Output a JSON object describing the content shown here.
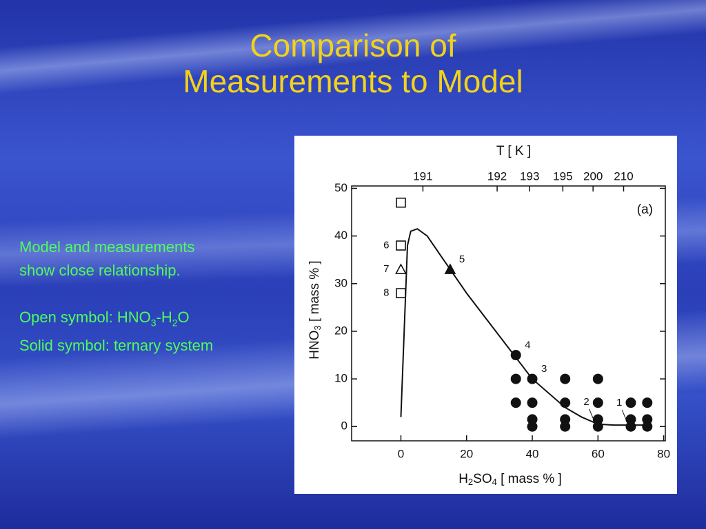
{
  "slide": {
    "title": [
      "Comparison of",
      "Measurements to Model"
    ],
    "text": [
      "Model and measurements",
      "show close relationship."
    ],
    "open_note": [
      "Open symbol: HNO",
      "3",
      "-H",
      "2",
      "O"
    ],
    "solid_note": "Solid symbol: ternary system"
  },
  "chart_data": {
    "type": "scatter",
    "x_label": [
      "H",
      "2",
      "SO",
      "4",
      " [ mass % ]"
    ],
    "y_label": [
      "HNO",
      "3",
      " [ mass % ]"
    ],
    "x2_label": "T [ K ]",
    "panel_label": "(a)",
    "xlim": [
      -15,
      80.5
    ],
    "ylim": [
      -3,
      50.5
    ],
    "xticks": [
      0,
      20,
      40,
      60,
      80
    ],
    "yticks": [
      0,
      10,
      20,
      30,
      40,
      50
    ],
    "x2ticks": [
      {
        "value": 6.7,
        "label": "191"
      },
      {
        "value": 29.3,
        "label": "192"
      },
      {
        "value": 39.2,
        "label": "193"
      },
      {
        "value": 49.3,
        "label": "195"
      },
      {
        "value": 58.5,
        "label": "200"
      },
      {
        "value": 67.8,
        "label": "210"
      }
    ],
    "series": [
      {
        "marker": "line",
        "color": "#111111",
        "x": [
          0,
          1,
          2,
          3,
          5,
          8,
          12,
          20,
          30,
          40,
          50,
          55,
          60,
          65,
          75
        ],
        "y": [
          2,
          20,
          38,
          41,
          41.5,
          40,
          36,
          28,
          19,
          10,
          4,
          2,
          0.5,
          0.3,
          0.3
        ]
      },
      {
        "marker": "square",
        "filled": false,
        "color": "#111111",
        "label_side": "left",
        "x": [
          0,
          0,
          0
        ],
        "y": [
          47,
          38,
          28
        ],
        "point_labels": [
          null,
          "6",
          "8"
        ]
      },
      {
        "marker": "triangle",
        "filled": false,
        "color": "#111111",
        "label_side": "left",
        "x": [
          0
        ],
        "y": [
          33
        ],
        "point_labels": [
          "7"
        ]
      },
      {
        "marker": "triangle",
        "filled": true,
        "color": "#111111",
        "label_side": "right",
        "x": [
          15
        ],
        "y": [
          33
        ],
        "point_labels": [
          "5"
        ]
      },
      {
        "marker": "circle",
        "filled": true,
        "color": "#111111",
        "label_side": "right",
        "x": [
          35,
          35,
          35,
          40,
          40,
          40,
          40,
          50,
          50,
          50,
          50,
          60,
          60,
          60,
          60,
          70,
          70,
          70,
          75,
          75,
          75
        ],
        "y": [
          15,
          10,
          5,
          10,
          5,
          1.5,
          0,
          10,
          5,
          1.5,
          0,
          10,
          5,
          1.5,
          0,
          5,
          1.5,
          0,
          5,
          1.5,
          0
        ],
        "point_labels": [
          "4",
          null,
          null,
          "3",
          null,
          null,
          null,
          null,
          null,
          null,
          null,
          null,
          null,
          null,
          null,
          null,
          null,
          null,
          null,
          null,
          null
        ]
      }
    ],
    "annotations": [
      {
        "text": "2",
        "x": 59,
        "y": 0.5
      },
      {
        "text": "1",
        "x": 69,
        "y": 0.3
      }
    ]
  }
}
